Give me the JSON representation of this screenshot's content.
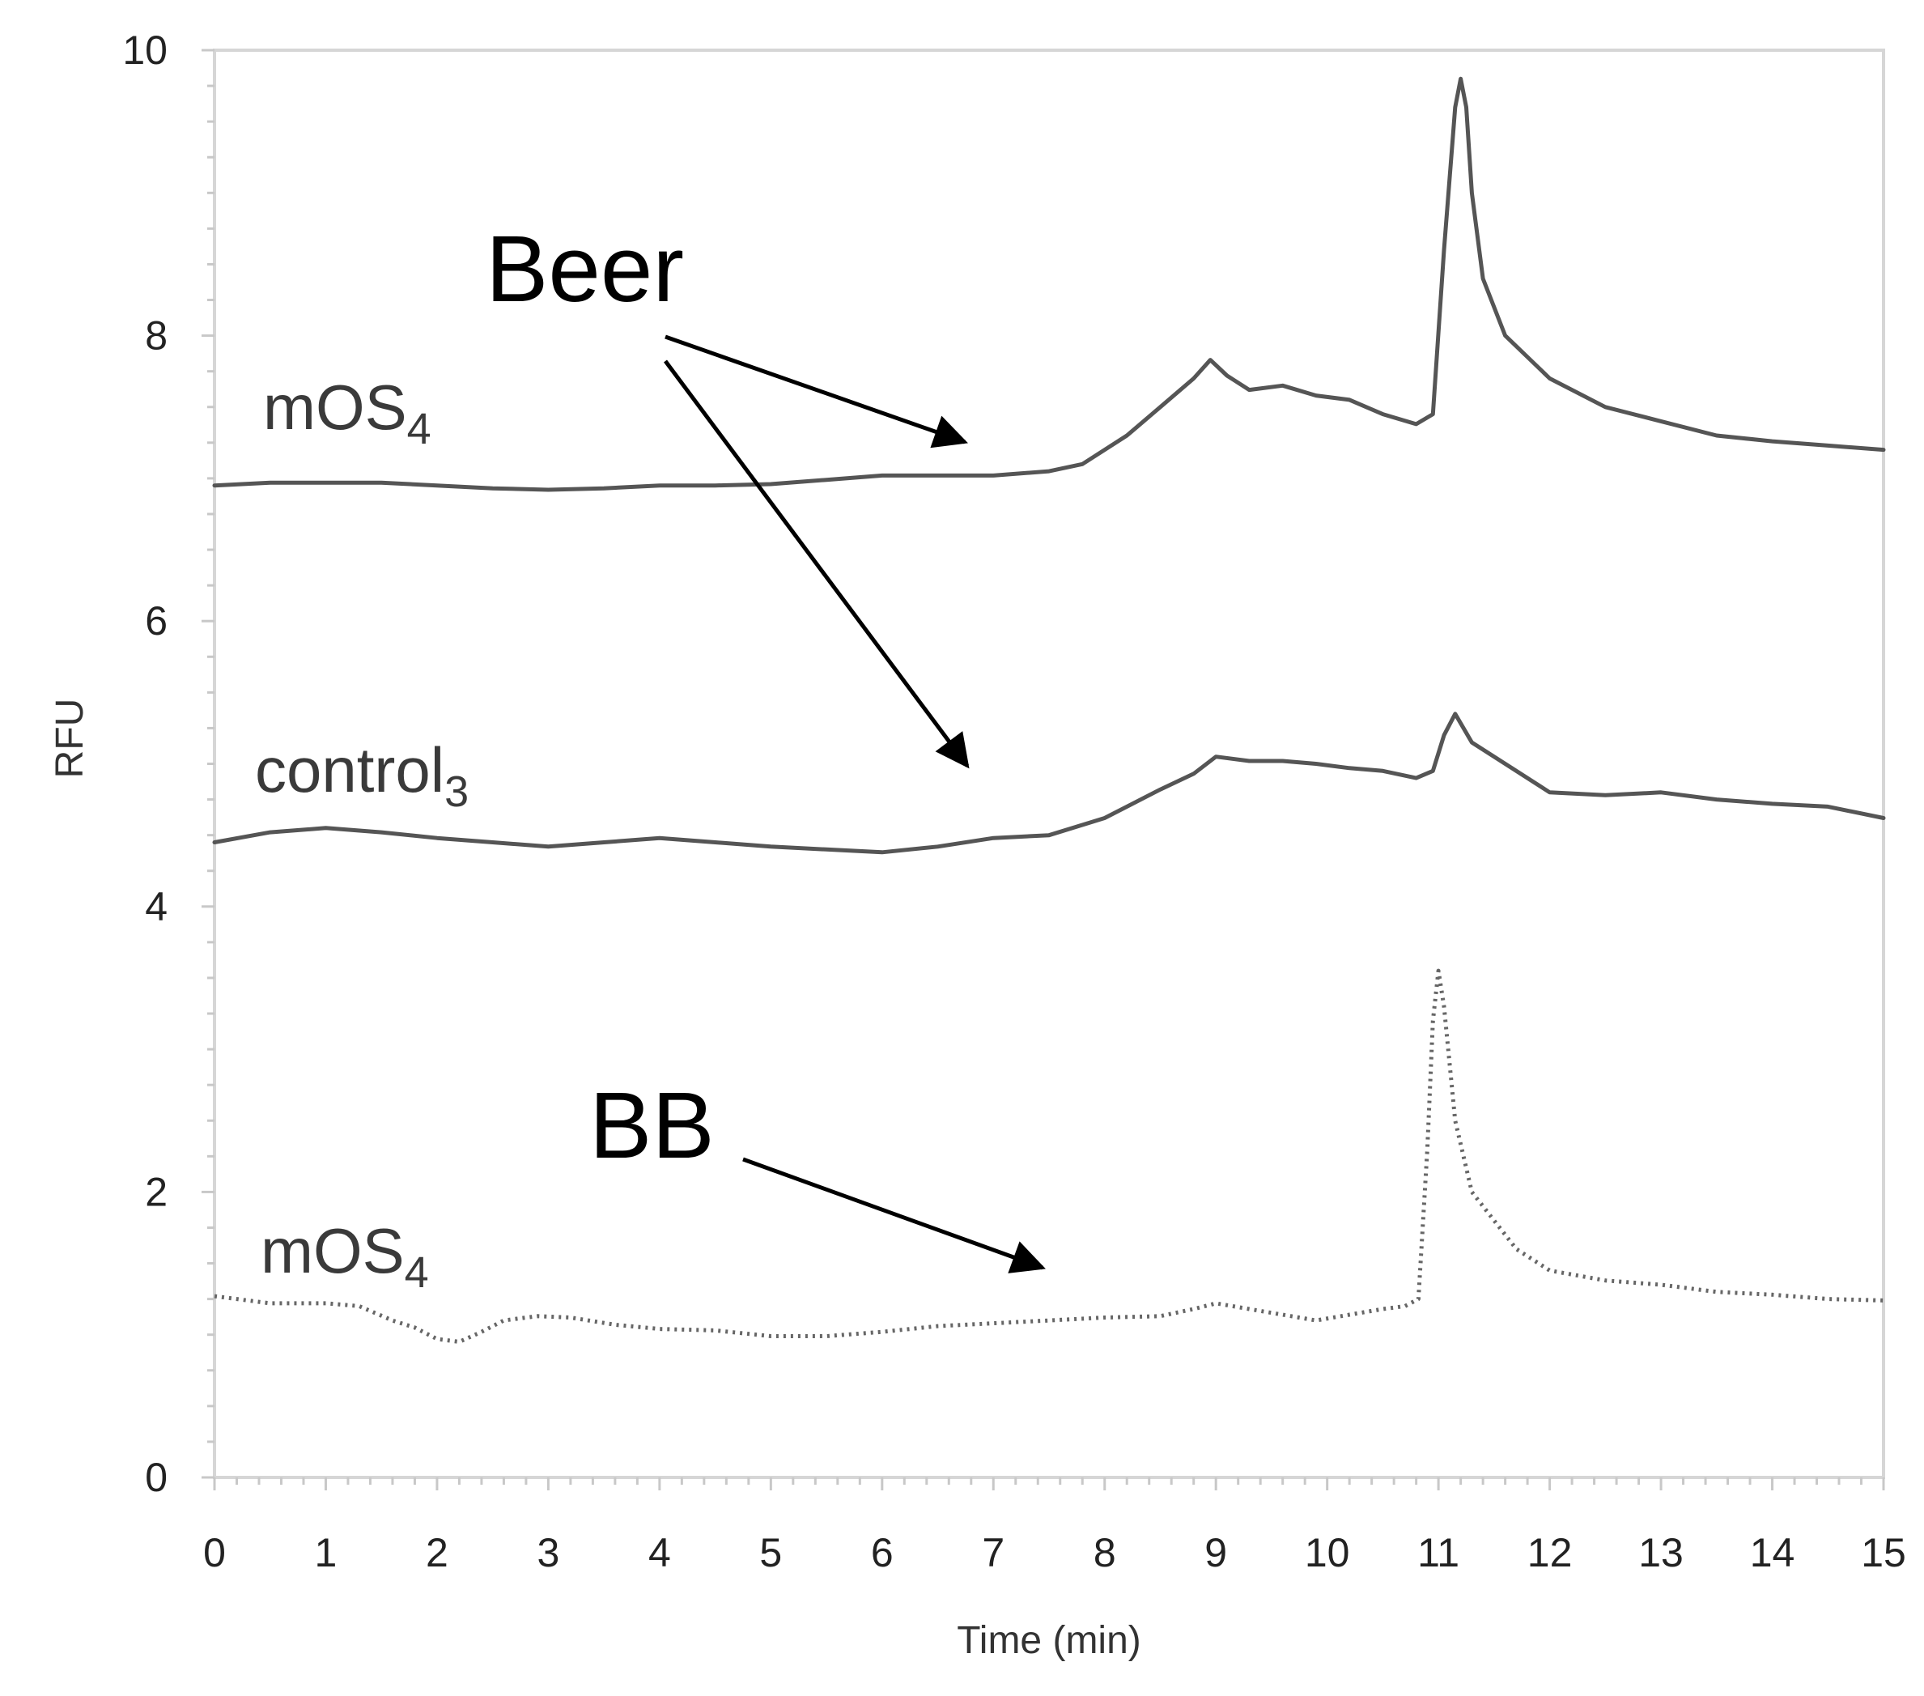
{
  "chart_data": {
    "type": "line",
    "title": "",
    "xlabel": "Time (min)",
    "ylabel": "RFU",
    "xlim": [
      0,
      15
    ],
    "ylim": [
      0,
      10
    ],
    "xticks": [
      "0",
      "1",
      "2",
      "3",
      "4",
      "5",
      "6",
      "7",
      "8",
      "9",
      "10",
      "11",
      "12",
      "13",
      "14",
      "15"
    ],
    "yticks": [
      "0",
      "2",
      "4",
      "6",
      "8",
      "10"
    ],
    "grid": false,
    "series": [
      {
        "name": "mOS4",
        "group": "Beer",
        "style": "solid",
        "color": "#555555",
        "x": [
          0,
          0.5,
          1,
          1.5,
          2,
          2.5,
          3,
          3.5,
          4,
          4.5,
          5,
          5.5,
          6,
          6.5,
          7,
          7.5,
          7.8,
          8.2,
          8.5,
          8.8,
          8.95,
          9.1,
          9.3,
          9.6,
          9.9,
          10.2,
          10.5,
          10.8,
          10.95,
          11.05,
          11.15,
          11.2,
          11.25,
          11.3,
          11.4,
          11.6,
          11.8,
          12.0,
          12.5,
          13,
          13.5,
          14,
          14.5,
          15
        ],
        "y": [
          6.95,
          6.97,
          6.97,
          6.97,
          6.95,
          6.93,
          6.92,
          6.93,
          6.95,
          6.95,
          6.96,
          6.99,
          7.02,
          7.02,
          7.02,
          7.05,
          7.1,
          7.3,
          7.5,
          7.7,
          7.83,
          7.72,
          7.62,
          7.65,
          7.58,
          7.55,
          7.45,
          7.38,
          7.45,
          8.6,
          9.6,
          9.8,
          9.6,
          9.0,
          8.4,
          8.0,
          7.85,
          7.7,
          7.5,
          7.4,
          7.3,
          7.26,
          7.23,
          7.2
        ]
      },
      {
        "name": "control3",
        "group": "Beer",
        "style": "solid",
        "color": "#555555",
        "x": [
          0,
          0.5,
          1,
          1.5,
          2,
          2.5,
          3,
          3.5,
          4,
          4.5,
          5,
          5.5,
          6,
          6.5,
          7,
          7.5,
          8,
          8.5,
          8.8,
          9.0,
          9.3,
          9.6,
          9.9,
          10.2,
          10.5,
          10.8,
          10.95,
          11.05,
          11.15,
          11.3,
          11.6,
          12,
          12.5,
          13,
          13.5,
          14,
          14.5,
          15
        ],
        "y": [
          4.45,
          4.52,
          4.55,
          4.52,
          4.48,
          4.45,
          4.42,
          4.45,
          4.48,
          4.45,
          4.42,
          4.4,
          4.38,
          4.42,
          4.48,
          4.5,
          4.62,
          4.82,
          4.93,
          5.05,
          5.02,
          5.02,
          5.0,
          4.97,
          4.95,
          4.9,
          4.95,
          5.2,
          5.35,
          5.15,
          5.0,
          4.8,
          4.78,
          4.8,
          4.75,
          4.72,
          4.7,
          4.62
        ]
      },
      {
        "name": "mOS4",
        "group": "BB",
        "style": "dotted",
        "color": "#666666",
        "x": [
          0,
          0.5,
          1,
          1.3,
          1.6,
          1.8,
          2,
          2.2,
          2.4,
          2.6,
          2.9,
          3.2,
          3.6,
          4,
          4.5,
          5,
          5.5,
          6,
          6.5,
          7,
          7.5,
          8,
          8.5,
          8.8,
          9.0,
          9.3,
          9.6,
          9.9,
          10.2,
          10.5,
          10.7,
          10.82,
          10.9,
          10.95,
          11.0,
          11.05,
          11.15,
          11.3,
          11.5,
          11.7,
          12.0,
          12.5,
          13,
          13.5,
          14,
          14.5,
          15
        ],
        "y": [
          1.27,
          1.22,
          1.22,
          1.2,
          1.1,
          1.05,
          0.97,
          0.95,
          1.02,
          1.1,
          1.13,
          1.12,
          1.07,
          1.04,
          1.03,
          0.99,
          0.99,
          1.02,
          1.06,
          1.08,
          1.1,
          1.12,
          1.13,
          1.18,
          1.22,
          1.18,
          1.14,
          1.1,
          1.14,
          1.18,
          1.2,
          1.25,
          2.3,
          3.2,
          3.55,
          3.3,
          2.5,
          2.0,
          1.8,
          1.6,
          1.45,
          1.38,
          1.35,
          1.3,
          1.28,
          1.25,
          1.24
        ]
      }
    ],
    "annotations": {
      "trace_labels": [
        {
          "base": "mOS",
          "sub": "4",
          "series": 0
        },
        {
          "base": "control",
          "sub": "3",
          "series": 1
        },
        {
          "base": "mOS",
          "sub": "4",
          "series": 2
        }
      ],
      "group_labels": [
        {
          "text": "Beer",
          "points_to": [
            "mOS4 (Beer)",
            "control3 (Beer)"
          ]
        },
        {
          "text": "BB",
          "points_to": [
            "mOS4 (BB)"
          ]
        }
      ]
    }
  }
}
